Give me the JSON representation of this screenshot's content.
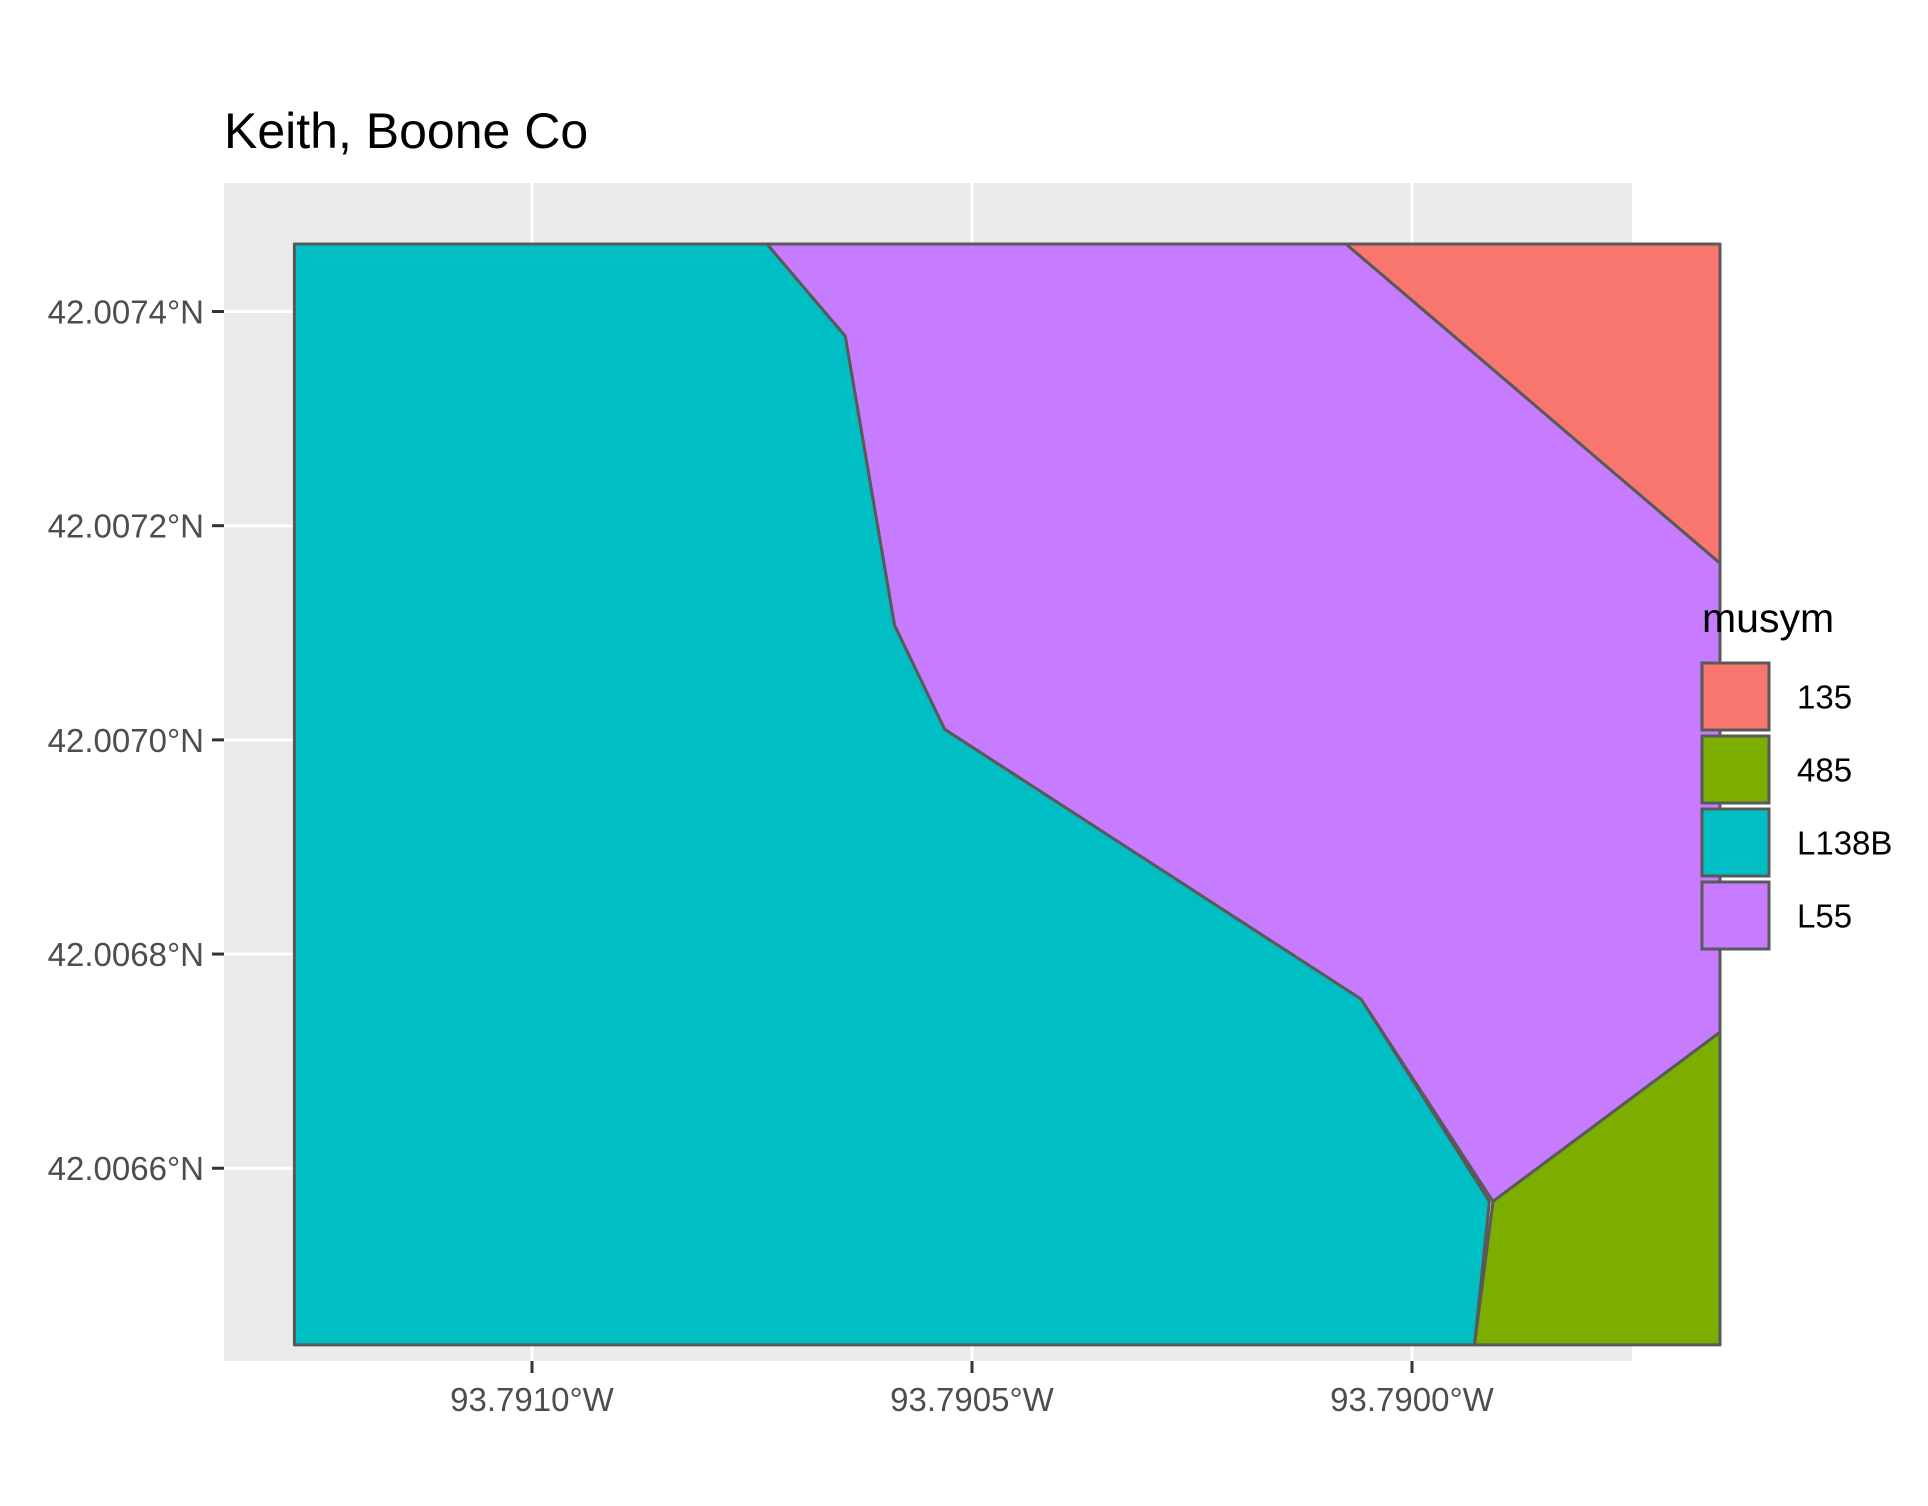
{
  "chart_data": {
    "type": "map",
    "title": "Keith, Boone Co",
    "x_axis": {
      "ticks": [
        {
          "value": -93.791,
          "label": "93.7910°W"
        },
        {
          "value": -93.7905,
          "label": "93.7905°W"
        },
        {
          "value": -93.79,
          "label": "93.7900°W"
        }
      ],
      "range": [
        -93.79135,
        -93.78975
      ]
    },
    "y_axis": {
      "ticks": [
        {
          "value": 42.0066,
          "label": "42.0066°N"
        },
        {
          "value": 42.0068,
          "label": "42.0068°N"
        },
        {
          "value": 42.007,
          "label": "42.0070°N"
        },
        {
          "value": 42.0072,
          "label": "42.0072°N"
        },
        {
          "value": 42.0074,
          "label": "42.0074°N"
        }
      ],
      "range": [
        42.00642,
        42.00752
      ]
    },
    "grid": true,
    "legend": {
      "title": "musym",
      "position": "right",
      "entries": [
        {
          "label": "135",
          "color": "#F8766D"
        },
        {
          "label": "485",
          "color": "#7CAE00"
        },
        {
          "label": "L138B",
          "color": "#00BFC4"
        },
        {
          "label": "L55",
          "color": "#C77CFF"
        }
      ]
    },
    "polygons": [
      {
        "musym": "L138B",
        "color": "#00BFC4",
        "coords": [
          [
            -93.79127,
            42.007463
          ],
          [
            -93.790733,
            42.007463
          ],
          [
            -93.790644,
            42.007377
          ],
          [
            -93.790588,
            42.007107
          ],
          [
            -93.790531,
            42.00701
          ],
          [
            -93.790058,
            42.006758
          ],
          [
            -93.789912,
            42.006569
          ],
          [
            -93.789929,
            42.006435
          ],
          [
            -93.79127,
            42.006435
          ]
        ]
      },
      {
        "musym": "L55",
        "color": "#C77CFF",
        "coords": [
          [
            -93.790733,
            42.007463
          ],
          [
            -93.790075,
            42.007463
          ],
          [
            -93.78965,
            42.007165
          ],
          [
            -93.78965,
            42.006727
          ],
          [
            -93.789908,
            42.006569
          ],
          [
            -93.790058,
            42.006758
          ],
          [
            -93.790531,
            42.00701
          ],
          [
            -93.790588,
            42.007107
          ],
          [
            -93.790644,
            42.007377
          ]
        ]
      },
      {
        "musym": "135",
        "color": "#F8766D",
        "coords": [
          [
            -93.790075,
            42.007463
          ],
          [
            -93.78965,
            42.007463
          ],
          [
            -93.78965,
            42.007165
          ]
        ]
      },
      {
        "musym": "485",
        "color": "#7CAE00",
        "coords": [
          [
            -93.789908,
            42.006569
          ],
          [
            -93.78965,
            42.006727
          ],
          [
            -93.78965,
            42.006435
          ],
          [
            -93.789929,
            42.006435
          ]
        ]
      }
    ]
  }
}
